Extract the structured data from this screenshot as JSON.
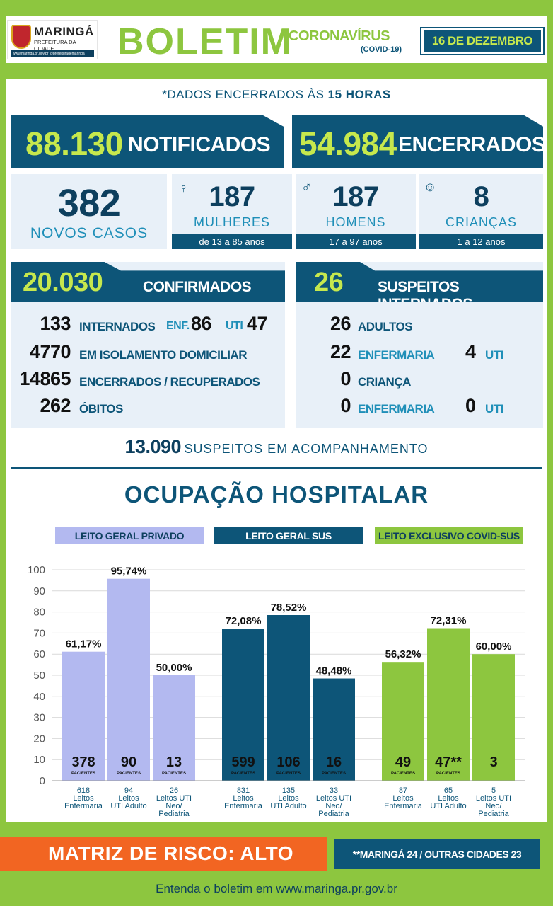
{
  "header": {
    "logo_city": "MARINGÁ",
    "logo_sub": "PREFEITURA DA CIDADE",
    "logo_social": "www.maringa.pr.gov.br  @prefeiturademaringa",
    "title": "BOLETIM",
    "subtitle": "CORONAVÍRUS",
    "subtitle2": "(COVID-19)",
    "date": "16 DE DEZEMBRO"
  },
  "note": {
    "prefix": "*DADOS ENCERRADOS ÀS ",
    "bold": "15 HORAS"
  },
  "totals": {
    "notified_value": "88.130",
    "notified_label": "NOTIFICADOS",
    "closed_value": "54.984",
    "closed_label": "ENCERRADOS"
  },
  "new_cases": {
    "value": "382",
    "label": "NOVOS CASOS"
  },
  "demographics": [
    {
      "value": "187",
      "label": "MULHERES",
      "range": "de 13 a 85 anos",
      "icon": "woman-icon"
    },
    {
      "value": "187",
      "label": "HOMENS",
      "range": "17 a 97 anos",
      "icon": "man-icon"
    },
    {
      "value": "8",
      "label": "CRIANÇAS",
      "range": "1 a 12 anos",
      "icon": "baby-icon"
    }
  ],
  "confirmed": {
    "value": "20.030",
    "label": "CONFIRMADOS",
    "rows": [
      {
        "value": "133",
        "label": "INTERNADOS",
        "enf_label": "ENF.",
        "enf": "86",
        "uti_label": "UTI",
        "uti": "47"
      },
      {
        "value": "4770",
        "label": "EM ISOLAMENTO DOMICILIAR"
      },
      {
        "value": "14865",
        "label": "ENCERRADOS / RECUPERADOS"
      },
      {
        "value": "262",
        "label": "ÓBITOS"
      }
    ]
  },
  "suspects": {
    "value": "26",
    "label": "SUSPEITOS INTERNADOS",
    "rows": [
      {
        "value": "26",
        "label": "ADULTOS"
      },
      {
        "value": "22",
        "label": "ENFERMARIA",
        "uti": "4",
        "uti_label": "UTI"
      },
      {
        "value": "0",
        "label": "CRIANÇA"
      },
      {
        "value": "0",
        "label": "ENFERMARIA",
        "uti": "0",
        "uti_label": "UTI"
      }
    ]
  },
  "monitoring": {
    "value": "13.090",
    "label": "SUSPEITOS EM ACOMPANHAMENTO"
  },
  "occupancy_title": "OCUPAÇÃO HOSPITALAR",
  "groups": [
    {
      "label": "LEITO GERAL PRIVADO",
      "color": "#b3b9f0",
      "text": "#0d3f5e"
    },
    {
      "label": "LEITO GERAL SUS",
      "color": "#0d5578",
      "text": "#ffffff"
    },
    {
      "label": "LEITO EXCLUSIVO COVID-SUS",
      "color": "#8dc63f",
      "text": "#0d3f5e"
    }
  ],
  "chart_data": {
    "type": "bar",
    "ylim": [
      0,
      100
    ],
    "yticks": [
      "100",
      "90",
      "80",
      "70",
      "60",
      "50",
      "40",
      "30",
      "20",
      "10",
      "0"
    ],
    "series": [
      {
        "group": 0,
        "color": "#b3b9f0",
        "bars": [
          {
            "pct": 61.17,
            "pct_label": "61,17%",
            "patients": "378",
            "sub": "PACIENTES",
            "total": "618",
            "cat1": "Leitos",
            "cat2": "Enfermaria",
            "cat3": ""
          },
          {
            "pct": 95.74,
            "pct_label": "95,74%",
            "patients": "90",
            "sub": "PACIENTES",
            "total": "94",
            "cat1": "Leitos",
            "cat2": "UTI Adulto",
            "cat3": ""
          },
          {
            "pct": 50.0,
            "pct_label": "50,00%",
            "patients": "13",
            "sub": "PACIENTES",
            "total": "26",
            "cat1": "Leitos UTI",
            "cat2": "Neo/",
            "cat3": "Pediatria"
          }
        ]
      },
      {
        "group": 1,
        "color": "#0d5578",
        "bars": [
          {
            "pct": 72.08,
            "pct_label": "72,08%",
            "patients": "599",
            "sub": "PACIENTES",
            "total": "831",
            "cat1": "Leitos",
            "cat2": "Enfermaria",
            "cat3": ""
          },
          {
            "pct": 78.52,
            "pct_label": "78,52%",
            "patients": "106",
            "sub": "PACIENTES",
            "total": "135",
            "cat1": "Leitos",
            "cat2": "UTI Adulto",
            "cat3": ""
          },
          {
            "pct": 48.48,
            "pct_label": "48,48%",
            "patients": "16",
            "sub": "PACIENTES",
            "total": "33",
            "cat1": "Leitos UTI",
            "cat2": "Neo/",
            "cat3": "Pediatria"
          }
        ]
      },
      {
        "group": 2,
        "color": "#8dc63f",
        "bars": [
          {
            "pct": 56.32,
            "pct_label": "56,32%",
            "patients": "49",
            "sub": "PACIENTES",
            "total": "87",
            "cat1": "Leitos",
            "cat2": "Enfermaria",
            "cat3": ""
          },
          {
            "pct": 72.31,
            "pct_label": "72,31%",
            "patients": "47**",
            "sub": "PACIENTES",
            "total": "65",
            "cat1": "Leitos",
            "cat2": "UTI Adulto",
            "cat3": ""
          },
          {
            "pct": 60.0,
            "pct_label": "60,00%",
            "patients": "3",
            "sub": "",
            "total": "5",
            "cat1": "Leitos UTI",
            "cat2": "Neo/",
            "cat3": "Pediatria"
          }
        ]
      }
    ]
  },
  "risk": {
    "label": "MATRIZ DE RISCO: ALTO"
  },
  "footnote": "**MARINGÁ 24 / OUTRAS CIDADES 23",
  "footer": "Entenda o boletim em www.maringa.pr.gov.br"
}
